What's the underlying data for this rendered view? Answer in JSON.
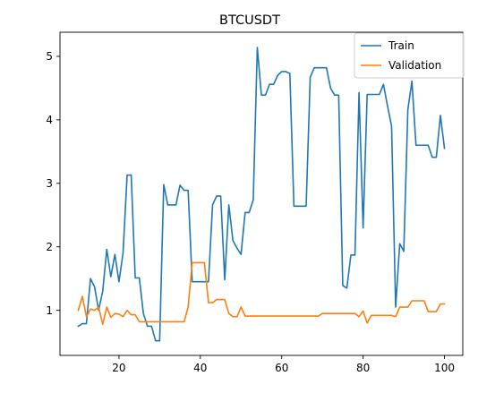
{
  "chart_data": {
    "type": "line",
    "title": "BTCUSDT",
    "xlabel": "",
    "ylabel": "",
    "xlim": [
      5.5,
      104.5
    ],
    "ylim": [
      0.29,
      5.38
    ],
    "xticks": [
      20,
      40,
      60,
      80,
      100
    ],
    "yticks": [
      1,
      2,
      3,
      4,
      5
    ],
    "grid": false,
    "legend": {
      "placement": "top-right",
      "entries": [
        "Train",
        "Validation"
      ]
    },
    "series": [
      {
        "name": "Train",
        "color": "#1f77b4",
        "x": [
          10,
          11,
          12,
          13,
          14,
          15,
          16,
          17,
          18,
          19,
          20,
          21,
          22,
          23,
          24,
          25,
          26,
          27,
          28,
          29,
          30,
          31,
          32,
          33,
          34,
          35,
          36,
          37,
          38,
          39,
          40,
          41,
          42,
          43,
          44,
          45,
          46,
          47,
          48,
          49,
          50,
          51,
          52,
          53,
          54,
          55,
          56,
          57,
          58,
          59,
          60,
          61,
          62,
          63,
          64,
          65,
          66,
          67,
          68,
          69,
          70,
          71,
          72,
          73,
          74,
          75,
          76,
          77,
          78,
          79,
          80,
          81,
          82,
          83,
          84,
          85,
          86,
          87,
          88,
          89,
          90,
          91,
          92,
          93,
          94,
          95,
          96,
          97,
          98,
          99,
          100
        ],
        "values": [
          0.75,
          0.79,
          0.79,
          1.5,
          1.37,
          1.0,
          1.3,
          1.96,
          1.53,
          1.88,
          1.45,
          1.9,
          3.13,
          3.13,
          1.51,
          1.51,
          0.95,
          0.75,
          0.75,
          0.52,
          0.52,
          2.98,
          2.66,
          2.66,
          2.66,
          2.97,
          2.89,
          2.89,
          1.45,
          1.45,
          1.45,
          1.45,
          1.45,
          2.66,
          2.8,
          2.8,
          1.48,
          2.66,
          2.1,
          1.98,
          1.88,
          2.54,
          2.54,
          2.74,
          5.14,
          4.39,
          4.39,
          4.56,
          4.56,
          4.7,
          4.76,
          4.76,
          4.73,
          2.64,
          2.64,
          2.64,
          2.64,
          4.67,
          4.82,
          4.82,
          4.82,
          4.82,
          4.5,
          4.39,
          4.39,
          1.39,
          1.35,
          1.87,
          1.87,
          4.43,
          2.3,
          4.4,
          4.4,
          4.4,
          4.4,
          4.56,
          4.22,
          3.9,
          1.05,
          2.05,
          1.93,
          4.16,
          4.61,
          3.6,
          3.6,
          3.6,
          3.6,
          3.41,
          3.41,
          4.07,
          3.55
        ]
      },
      {
        "name": "Validation",
        "color": "#ff7f0e",
        "x": [
          10,
          11,
          12,
          13,
          14,
          15,
          16,
          17,
          18,
          19,
          20,
          21,
          22,
          23,
          24,
          25,
          26,
          27,
          28,
          29,
          30,
          31,
          32,
          33,
          34,
          35,
          36,
          37,
          38,
          39,
          40,
          41,
          42,
          43,
          44,
          45,
          46,
          47,
          48,
          49,
          50,
          51,
          52,
          53,
          54,
          55,
          56,
          57,
          58,
          59,
          60,
          61,
          62,
          63,
          64,
          65,
          66,
          67,
          68,
          69,
          70,
          71,
          72,
          73,
          74,
          75,
          76,
          77,
          78,
          79,
          80,
          81,
          82,
          83,
          84,
          85,
          86,
          87,
          88,
          89,
          90,
          91,
          92,
          93,
          94,
          95,
          96,
          97,
          98,
          99,
          100
        ],
        "values": [
          1.0,
          1.22,
          0.9,
          1.02,
          1.0,
          1.05,
          0.78,
          1.05,
          0.89,
          0.95,
          0.94,
          0.9,
          1.0,
          0.93,
          0.93,
          0.82,
          0.82,
          0.82,
          0.82,
          0.82,
          0.82,
          0.82,
          0.82,
          0.82,
          0.82,
          0.82,
          0.82,
          1.05,
          1.75,
          1.75,
          1.75,
          1.75,
          1.12,
          1.12,
          1.17,
          1.17,
          1.17,
          0.95,
          0.9,
          0.9,
          1.05,
          0.91,
          0.91,
          0.91,
          0.91,
          0.91,
          0.91,
          0.91,
          0.91,
          0.91,
          0.91,
          0.91,
          0.91,
          0.91,
          0.91,
          0.91,
          0.91,
          0.91,
          0.91,
          0.91,
          0.95,
          0.95,
          0.95,
          0.95,
          0.95,
          0.95,
          0.95,
          0.95,
          0.95,
          0.9,
          0.99,
          0.8,
          0.92,
          0.92,
          0.92,
          0.92,
          0.92,
          0.92,
          0.9,
          1.05,
          1.05,
          1.05,
          1.15,
          1.15,
          1.15,
          1.15,
          0.98,
          0.98,
          0.98,
          1.1,
          1.1
        ]
      }
    ]
  }
}
